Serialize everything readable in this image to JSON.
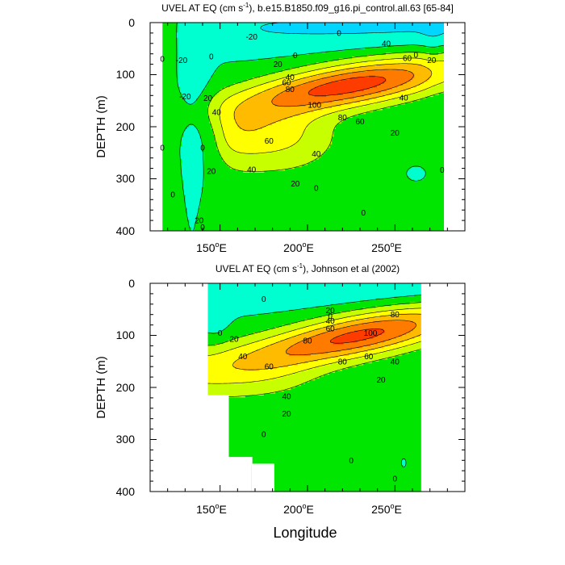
{
  "figure": {
    "xlabel": "Longitude"
  },
  "chart_data": [
    {
      "type": "heatmap",
      "title": "UVEL AT EQ (cm s-1), b.e15.B1850.f09_g16.pi_control.all.63 [65-84]",
      "title_parts": [
        "UVEL AT EQ (cm s",
        "-1",
        "), b.e15.B1850.f09_g16.pi_control.all.63 [65-84]"
      ],
      "ylabel": "DEPTH (m)",
      "xlim": [
        110,
        290
      ],
      "ylim": [
        400,
        0
      ],
      "data_extent_lon": [
        117,
        278
      ],
      "yticks": [
        "0",
        "100",
        "200",
        "300",
        "400"
      ],
      "xticks": [
        {
          "base": "150",
          "sup": "o",
          "suf": "E"
        },
        {
          "base": "200",
          "sup": "o",
          "suf": "E"
        },
        {
          "base": "250",
          "sup": "o",
          "suf": "E"
        }
      ],
      "contour_levels": [
        -20,
        0,
        20,
        40,
        60,
        80,
        100
      ],
      "core": {
        "lon": 225,
        "depth": 120,
        "max": 110
      },
      "contour_labels": [
        {
          "t": "-20",
          "lon": 168,
          "depth": 27
        },
        {
          "t": "0",
          "lon": 193,
          "depth": 63
        },
        {
          "t": "0",
          "lon": 218,
          "depth": 20
        },
        {
          "t": "0",
          "lon": 117,
          "depth": 70
        },
        {
          "t": "0",
          "lon": 117,
          "depth": 240
        },
        {
          "t": "0",
          "lon": 123,
          "depth": 330
        },
        {
          "t": "0",
          "lon": 145,
          "depth": 65
        },
        {
          "t": "0",
          "lon": 140,
          "depth": 240
        },
        {
          "t": "0",
          "lon": 140,
          "depth": 393
        },
        {
          "t": "0",
          "lon": 205,
          "depth": 318
        },
        {
          "t": "0",
          "lon": 232,
          "depth": 365
        },
        {
          "t": "0",
          "lon": 277,
          "depth": 283
        },
        {
          "t": "0",
          "lon": 262,
          "depth": 62
        },
        {
          "t": "-20",
          "lon": 128,
          "depth": 72
        },
        {
          "t": "-20",
          "lon": 130,
          "depth": 142
        },
        {
          "t": "20",
          "lon": 143,
          "depth": 145
        },
        {
          "t": "20",
          "lon": 145,
          "depth": 285
        },
        {
          "t": "20",
          "lon": 138,
          "depth": 380
        },
        {
          "t": "20",
          "lon": 183,
          "depth": 80
        },
        {
          "t": "20",
          "lon": 193,
          "depth": 309
        },
        {
          "t": "20",
          "lon": 250,
          "depth": 212
        },
        {
          "t": "20",
          "lon": 271,
          "depth": 72
        },
        {
          "t": "40",
          "lon": 148,
          "depth": 172
        },
        {
          "t": "40",
          "lon": 190,
          "depth": 105
        },
        {
          "t": "40",
          "lon": 245,
          "depth": 40
        },
        {
          "t": "40",
          "lon": 255,
          "depth": 144
        },
        {
          "t": "40",
          "lon": 205,
          "depth": 252
        },
        {
          "t": "40",
          "lon": 168,
          "depth": 282
        },
        {
          "t": "60",
          "lon": 188,
          "depth": 115
        },
        {
          "t": "60",
          "lon": 230,
          "depth": 190
        },
        {
          "t": "60",
          "lon": 178,
          "depth": 227
        },
        {
          "t": "60",
          "lon": 257,
          "depth": 68
        },
        {
          "t": "80",
          "lon": 190,
          "depth": 128
        },
        {
          "t": "80",
          "lon": 220,
          "depth": 182
        },
        {
          "t": "100",
          "lon": 204,
          "depth": 158
        }
      ]
    },
    {
      "type": "heatmap",
      "title": "UVEL AT EQ (cm s-1), Johnson et al (2002)",
      "title_parts": [
        "UVEL AT EQ (cm s",
        "-1",
        "), Johnson et al (2002)"
      ],
      "ylabel": "DEPTH (m)",
      "xlim": [
        110,
        290
      ],
      "ylim": [
        400,
        0
      ],
      "data_extent_lon": [
        143,
        265
      ],
      "yticks": [
        "0",
        "100",
        "200",
        "300",
        "400"
      ],
      "xticks": [
        {
          "base": "150",
          "sup": "o",
          "suf": "E"
        },
        {
          "base": "200",
          "sup": "o",
          "suf": "E"
        },
        {
          "base": "250",
          "sup": "o",
          "suf": "E"
        }
      ],
      "contour_levels": [
        -20,
        0,
        20,
        40,
        60,
        80,
        100
      ],
      "core": {
        "lon": 230,
        "depth": 100,
        "max": 105
      },
      "contour_labels": [
        {
          "t": "0",
          "lon": 175,
          "depth": 30
        },
        {
          "t": "0",
          "lon": 213,
          "depth": 63
        },
        {
          "t": "0",
          "lon": 150,
          "depth": 95
        },
        {
          "t": "0",
          "lon": 175,
          "depth": 290
        },
        {
          "t": "0",
          "lon": 225,
          "depth": 340
        },
        {
          "t": "0",
          "lon": 250,
          "depth": 375
        },
        {
          "t": "20",
          "lon": 158,
          "depth": 107
        },
        {
          "t": "20",
          "lon": 213,
          "depth": 52
        },
        {
          "t": "20",
          "lon": 188,
          "depth": 250
        },
        {
          "t": "20",
          "lon": 242,
          "depth": 185
        },
        {
          "t": "40",
          "lon": 163,
          "depth": 140
        },
        {
          "t": "40",
          "lon": 213,
          "depth": 72
        },
        {
          "t": "40",
          "lon": 188,
          "depth": 217
        },
        {
          "t": "40",
          "lon": 250,
          "depth": 150
        },
        {
          "t": "60",
          "lon": 178,
          "depth": 160
        },
        {
          "t": "60",
          "lon": 213,
          "depth": 87
        },
        {
          "t": "60",
          "lon": 235,
          "depth": 140
        },
        {
          "t": "80",
          "lon": 200,
          "depth": 110
        },
        {
          "t": "80",
          "lon": 220,
          "depth": 150
        },
        {
          "t": "80",
          "lon": 250,
          "depth": 60
        },
        {
          "t": "100",
          "lon": 236,
          "depth": 95
        }
      ]
    }
  ],
  "colors": {
    "levels": [
      "#00d6ff",
      "#00ffd0",
      "#00e600",
      "#c8ff00",
      "#ffff00",
      "#ffbb00",
      "#ff7b00",
      "#ff3c00",
      "#e60000"
    ],
    "background": "#ffffff",
    "outline": "#000000"
  }
}
